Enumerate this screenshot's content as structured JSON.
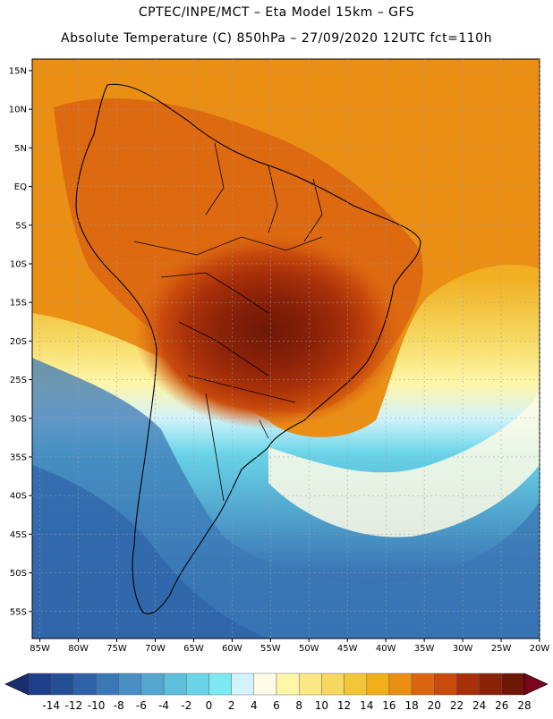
{
  "header": {
    "line1": "CPTEC/INPE/MCT –  Eta Model 15km – GFS",
    "line2": "Absolute Temperature (C) 850hPa – 27/09/2020 12UTC fct=110h"
  },
  "map": {
    "lat_labels": [
      "15N",
      "10N",
      "5N",
      "EQ",
      "5S",
      "10S",
      "15S",
      "20S",
      "25S",
      "30S",
      "35S",
      "40S",
      "45S",
      "50S",
      "55S"
    ],
    "lon_labels": [
      "85W",
      "80W",
      "75W",
      "70W",
      "65W",
      "60W",
      "55W",
      "50W",
      "45W",
      "40W",
      "35W",
      "30W",
      "25W",
      "20W"
    ]
  },
  "colorbar": {
    "labels": [
      "-14",
      "-12",
      "-10",
      "-8",
      "-6",
      "-4",
      "-2",
      "0",
      "2",
      "4",
      "6",
      "8",
      "10",
      "12",
      "14",
      "16",
      "18",
      "20",
      "22",
      "24",
      "26",
      "28"
    ],
    "colors": [
      "#1e3f8a",
      "#244f97",
      "#2e62a8",
      "#3b78b6",
      "#4a8fc4",
      "#52a6cf",
      "#5dbfdc",
      "#6ad5e8",
      "#7de9f2",
      "#d2f3fb",
      "#fffbe6",
      "#fff6a8",
      "#fbe783",
      "#f6d860",
      "#f3c63a",
      "#f1ae1b",
      "#eb8f14",
      "#dc6510",
      "#c84a0c",
      "#a83009",
      "#8a2208",
      "#6e1706"
    ],
    "left_arrow_color": "#1a2f70",
    "right_arrow_color": "#7a0420"
  }
}
